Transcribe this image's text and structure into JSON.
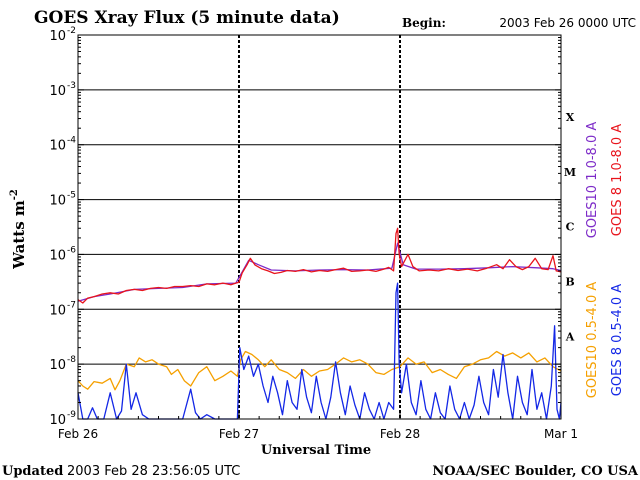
{
  "header": {
    "title": "GOES Xray Flux (5 minute data)",
    "begin_label": "Begin:",
    "begin_value": "2003 Feb 26 0000 UTC"
  },
  "footer": {
    "updated_label": "Updated",
    "updated_value": "2003 Feb 28 23:56:05 UTC",
    "credit": "NOAA/SEC Boulder, CO USA"
  },
  "colors": {
    "goes10_long": "#7d2bc8",
    "goes8_long": "#e8141c",
    "goes10_short": "#f5a000",
    "goes8_short": "#1428e6",
    "axis": "#000000",
    "background": "#ffffff"
  },
  "chart_data": {
    "type": "line",
    "title": "GOES Xray Flux (5 minute data)",
    "xlabel": "Universal Time",
    "ylabel": "Watts m",
    "ylabel_sup": "-2",
    "yscale": "log",
    "ylim": [
      1e-09,
      0.01
    ],
    "y_ticks": [
      {
        "base": "10",
        "exp": "-9",
        "value": 1e-09
      },
      {
        "base": "10",
        "exp": "-8",
        "value": 1e-08
      },
      {
        "base": "10",
        "exp": "-7",
        "value": 1e-07
      },
      {
        "base": "10",
        "exp": "-6",
        "value": 1e-06
      },
      {
        "base": "10",
        "exp": "-5",
        "value": 1e-05
      },
      {
        "base": "10",
        "exp": "-4",
        "value": 0.0001
      },
      {
        "base": "10",
        "exp": "-3",
        "value": 0.001
      },
      {
        "base": "10",
        "exp": "-2",
        "value": 0.01
      }
    ],
    "xlim": [
      "2003-02-26",
      "2003-03-01"
    ],
    "x_ticks": [
      {
        "label": "Feb 26",
        "day": 0
      },
      {
        "label": "Feb 27",
        "day": 1
      },
      {
        "label": "Feb 28",
        "day": 2
      },
      {
        "label": "Mar 1",
        "day": 3
      }
    ],
    "flare_classes": [
      {
        "label": "A",
        "value": 3.2e-08
      },
      {
        "label": "B",
        "value": 3.2e-07
      },
      {
        "label": "C",
        "value": 3.2e-06
      },
      {
        "label": "M",
        "value": 3.2e-05
      },
      {
        "label": "X",
        "value": 0.00032
      }
    ],
    "grid": true,
    "legend_position": "right",
    "series": [
      {
        "name": "GOES10 1.0-8.0 A",
        "color": "#7d2bc8",
        "points": [
          [
            0.0,
            1.4e-07
          ],
          [
            0.1,
            1.7e-07
          ],
          [
            0.2,
            1.9e-07
          ],
          [
            0.35,
            2.3e-07
          ],
          [
            0.5,
            2.4e-07
          ],
          [
            0.65,
            2.5e-07
          ],
          [
            0.8,
            2.9e-07
          ],
          [
            0.98,
            3e-07
          ],
          [
            1.02,
            4.8e-07
          ],
          [
            1.06,
            7.8e-07
          ],
          [
            1.12,
            6.5e-07
          ],
          [
            1.2,
            5.2e-07
          ],
          [
            1.35,
            5e-07
          ],
          [
            1.5,
            5.2e-07
          ],
          [
            1.65,
            5.3e-07
          ],
          [
            1.8,
            5.2e-07
          ],
          [
            1.95,
            5.6e-07
          ],
          [
            1.985,
            1.6e-06
          ],
          [
            2.02,
            6.5e-07
          ],
          [
            2.1,
            5.4e-07
          ],
          [
            2.25,
            5.4e-07
          ],
          [
            2.4,
            5.5e-07
          ],
          [
            2.55,
            5.7e-07
          ],
          [
            2.7,
            6e-07
          ],
          [
            2.85,
            5.7e-07
          ],
          [
            2.95,
            5.5e-07
          ],
          [
            3.0,
            5.1e-07
          ]
        ]
      },
      {
        "name": "GOES 8 1.0-8.0 A",
        "color": "#e8141c",
        "points": [
          [
            0.0,
            1.5e-07
          ],
          [
            0.03,
            1.3e-07
          ],
          [
            0.06,
            1.6e-07
          ],
          [
            0.1,
            1.7e-07
          ],
          [
            0.15,
            1.9e-07
          ],
          [
            0.2,
            2e-07
          ],
          [
            0.25,
            1.9e-07
          ],
          [
            0.3,
            2.2e-07
          ],
          [
            0.35,
            2.3e-07
          ],
          [
            0.4,
            2.2e-07
          ],
          [
            0.45,
            2.4e-07
          ],
          [
            0.5,
            2.5e-07
          ],
          [
            0.55,
            2.4e-07
          ],
          [
            0.6,
            2.6e-07
          ],
          [
            0.65,
            2.6e-07
          ],
          [
            0.7,
            2.7e-07
          ],
          [
            0.75,
            2.6e-07
          ],
          [
            0.8,
            2.9e-07
          ],
          [
            0.85,
            2.8e-07
          ],
          [
            0.9,
            3e-07
          ],
          [
            0.95,
            2.8e-07
          ],
          [
            0.98,
            3e-07
          ],
          [
            1.0,
            3.1e-07
          ],
          [
            1.02,
            4.6e-07
          ],
          [
            1.05,
            6.5e-07
          ],
          [
            1.07,
            8.5e-07
          ],
          [
            1.1,
            6.4e-07
          ],
          [
            1.14,
            5.5e-07
          ],
          [
            1.18,
            5e-07
          ],
          [
            1.22,
            4.5e-07
          ],
          [
            1.26,
            4.7e-07
          ],
          [
            1.3,
            5.1e-07
          ],
          [
            1.35,
            4.9e-07
          ],
          [
            1.4,
            5.3e-07
          ],
          [
            1.45,
            4.8e-07
          ],
          [
            1.5,
            5.1e-07
          ],
          [
            1.55,
            4.9e-07
          ],
          [
            1.6,
            5.3e-07
          ],
          [
            1.65,
            5.6e-07
          ],
          [
            1.7,
            4.9e-07
          ],
          [
            1.75,
            5e-07
          ],
          [
            1.8,
            5.2e-07
          ],
          [
            1.85,
            4.9e-07
          ],
          [
            1.9,
            5.4e-07
          ],
          [
            1.93,
            5.8e-07
          ],
          [
            1.96,
            5e-07
          ],
          [
            1.975,
            2.4e-06
          ],
          [
            1.985,
            3e-06
          ],
          [
            1.995,
            1e-06
          ],
          [
            2.01,
            6e-07
          ],
          [
            2.05,
            1e-06
          ],
          [
            2.08,
            6e-07
          ],
          [
            2.12,
            5e-07
          ],
          [
            2.18,
            5.2e-07
          ],
          [
            2.24,
            5e-07
          ],
          [
            2.3,
            5.5e-07
          ],
          [
            2.36,
            5.1e-07
          ],
          [
            2.42,
            5.4e-07
          ],
          [
            2.48,
            5e-07
          ],
          [
            2.54,
            5.6e-07
          ],
          [
            2.6,
            6.5e-07
          ],
          [
            2.64,
            5.5e-07
          ],
          [
            2.68,
            8e-07
          ],
          [
            2.72,
            6e-07
          ],
          [
            2.76,
            5.3e-07
          ],
          [
            2.8,
            6e-07
          ],
          [
            2.84,
            8.5e-07
          ],
          [
            2.88,
            5.5e-07
          ],
          [
            2.92,
            5.3e-07
          ],
          [
            2.95,
            9.5e-07
          ],
          [
            2.97,
            5e-07
          ],
          [
            3.0,
            4.8e-07
          ]
        ]
      },
      {
        "name": "GOES10 0.5-4.0 A",
        "color": "#f5a000",
        "points": [
          [
            0.0,
            5e-09
          ],
          [
            0.03,
            4e-09
          ],
          [
            0.06,
            3.5e-09
          ],
          [
            0.1,
            4.8e-09
          ],
          [
            0.15,
            4.5e-09
          ],
          [
            0.2,
            5.5e-09
          ],
          [
            0.23,
            3.4e-09
          ],
          [
            0.26,
            5e-09
          ],
          [
            0.3,
            1e-08
          ],
          [
            0.35,
            9e-09
          ],
          [
            0.38,
            1.3e-08
          ],
          [
            0.42,
            1.1e-08
          ],
          [
            0.46,
            1.2e-08
          ],
          [
            0.5,
            1e-08
          ],
          [
            0.55,
            9e-09
          ],
          [
            0.58,
            6.5e-09
          ],
          [
            0.62,
            8e-09
          ],
          [
            0.66,
            5e-09
          ],
          [
            0.7,
            4e-09
          ],
          [
            0.75,
            7e-09
          ],
          [
            0.8,
            9e-09
          ],
          [
            0.85,
            5e-09
          ],
          [
            0.9,
            6e-09
          ],
          [
            0.95,
            7.5e-09
          ],
          [
            0.99,
            6e-09
          ],
          [
            1.01,
            1.2e-08
          ],
          [
            1.04,
            1.7e-08
          ],
          [
            1.08,
            1.5e-08
          ],
          [
            1.12,
            1.2e-08
          ],
          [
            1.16,
            9e-09
          ],
          [
            1.2,
            1.2e-08
          ],
          [
            1.25,
            8e-09
          ],
          [
            1.3,
            7e-09
          ],
          [
            1.35,
            5.5e-09
          ],
          [
            1.4,
            8e-09
          ],
          [
            1.45,
            6e-09
          ],
          [
            1.5,
            7.5e-09
          ],
          [
            1.55,
            8e-09
          ],
          [
            1.6,
            1e-08
          ],
          [
            1.65,
            1.3e-08
          ],
          [
            1.7,
            1.1e-08
          ],
          [
            1.75,
            1.2e-08
          ],
          [
            1.8,
            1e-08
          ],
          [
            1.85,
            7e-09
          ],
          [
            1.9,
            6.5e-09
          ],
          [
            1.95,
            8e-09
          ],
          [
            2.0,
            9e-09
          ],
          [
            2.05,
            1.3e-08
          ],
          [
            2.1,
            1e-08
          ],
          [
            2.15,
            1.1e-08
          ],
          [
            2.2,
            7e-09
          ],
          [
            2.25,
            8e-09
          ],
          [
            2.3,
            6.5e-09
          ],
          [
            2.35,
            5.5e-09
          ],
          [
            2.4,
            9e-09
          ],
          [
            2.45,
            1e-08
          ],
          [
            2.5,
            1.2e-08
          ],
          [
            2.55,
            1.3e-08
          ],
          [
            2.6,
            1.7e-08
          ],
          [
            2.65,
            1.4e-08
          ],
          [
            2.7,
            1.6e-08
          ],
          [
            2.75,
            1.3e-08
          ],
          [
            2.8,
            1.6e-08
          ],
          [
            2.85,
            1.1e-08
          ],
          [
            2.9,
            1.3e-08
          ],
          [
            2.95,
            9e-09
          ],
          [
            3.0,
            7.5e-09
          ]
        ]
      },
      {
        "name": "GOES 8 0.5-4.0 A",
        "color": "#1428e6",
        "points": [
          [
            0.0,
            3e-09
          ],
          [
            0.03,
            1e-09
          ],
          [
            0.06,
            1e-09
          ],
          [
            0.09,
            1.6e-09
          ],
          [
            0.12,
            1e-09
          ],
          [
            0.16,
            1e-09
          ],
          [
            0.2,
            3e-09
          ],
          [
            0.24,
            1e-09
          ],
          [
            0.27,
            1.4e-09
          ],
          [
            0.3,
            1e-08
          ],
          [
            0.33,
            1.5e-09
          ],
          [
            0.36,
            3e-09
          ],
          [
            0.4,
            1.2e-09
          ],
          [
            0.44,
            1e-09
          ],
          [
            0.5,
            1e-09
          ],
          [
            0.55,
            1e-09
          ],
          [
            0.6,
            1e-09
          ],
          [
            0.65,
            1e-09
          ],
          [
            0.7,
            3.5e-09
          ],
          [
            0.73,
            1.3e-09
          ],
          [
            0.76,
            1e-09
          ],
          [
            0.8,
            1.2e-09
          ],
          [
            0.85,
            1e-09
          ],
          [
            0.9,
            1e-09
          ],
          [
            0.95,
            1e-09
          ],
          [
            0.99,
            1e-09
          ],
          [
            1.005,
            2e-08
          ],
          [
            1.03,
            8e-09
          ],
          [
            1.06,
            1.4e-08
          ],
          [
            1.09,
            6e-09
          ],
          [
            1.12,
            1e-08
          ],
          [
            1.15,
            4e-09
          ],
          [
            1.18,
            2e-09
          ],
          [
            1.21,
            6e-09
          ],
          [
            1.24,
            3e-09
          ],
          [
            1.27,
            1.2e-09
          ],
          [
            1.3,
            5e-09
          ],
          [
            1.33,
            2e-09
          ],
          [
            1.36,
            1.5e-09
          ],
          [
            1.39,
            8e-09
          ],
          [
            1.42,
            2.5e-09
          ],
          [
            1.45,
            1.3e-09
          ],
          [
            1.48,
            6e-09
          ],
          [
            1.51,
            2e-09
          ],
          [
            1.54,
            1e-09
          ],
          [
            1.57,
            2.5e-09
          ],
          [
            1.6,
            1.1e-08
          ],
          [
            1.63,
            3e-09
          ],
          [
            1.66,
            1.2e-09
          ],
          [
            1.69,
            4e-09
          ],
          [
            1.72,
            1.8e-09
          ],
          [
            1.75,
            1e-09
          ],
          [
            1.78,
            3e-09
          ],
          [
            1.81,
            1.5e-09
          ],
          [
            1.84,
            1e-09
          ],
          [
            1.87,
            2e-09
          ],
          [
            1.9,
            1e-09
          ],
          [
            1.93,
            2e-09
          ],
          [
            1.96,
            1.5e-09
          ],
          [
            1.975,
            2e-07
          ],
          [
            1.985,
            3e-07
          ],
          [
            1.995,
            1e-08
          ],
          [
            2.01,
            3e-09
          ],
          [
            2.04,
            1e-08
          ],
          [
            2.07,
            2e-09
          ],
          [
            2.1,
            1.2e-09
          ],
          [
            2.13,
            5e-09
          ],
          [
            2.16,
            1.5e-09
          ],
          [
            2.19,
            1e-09
          ],
          [
            2.22,
            3e-09
          ],
          [
            2.25,
            1.3e-09
          ],
          [
            2.28,
            1e-09
          ],
          [
            2.31,
            4e-09
          ],
          [
            2.34,
            1.5e-09
          ],
          [
            2.37,
            1e-09
          ],
          [
            2.4,
            2e-09
          ],
          [
            2.43,
            1e-09
          ],
          [
            2.46,
            1.8e-09
          ],
          [
            2.49,
            6e-09
          ],
          [
            2.52,
            2e-09
          ],
          [
            2.55,
            1.2e-09
          ],
          [
            2.58,
            8e-09
          ],
          [
            2.61,
            2.5e-09
          ],
          [
            2.64,
            1.5e-08
          ],
          [
            2.67,
            3e-09
          ],
          [
            2.7,
            1e-09
          ],
          [
            2.73,
            6e-09
          ],
          [
            2.76,
            2e-09
          ],
          [
            2.79,
            1.2e-09
          ],
          [
            2.82,
            8e-09
          ],
          [
            2.85,
            1.5e-09
          ],
          [
            2.88,
            3e-09
          ],
          [
            2.91,
            1e-09
          ],
          [
            2.94,
            4e-09
          ],
          [
            2.96,
            5e-08
          ],
          [
            2.975,
            1.5e-09
          ],
          [
            2.99,
            1e-09
          ],
          [
            3.0,
            2e-09
          ]
        ]
      }
    ]
  }
}
